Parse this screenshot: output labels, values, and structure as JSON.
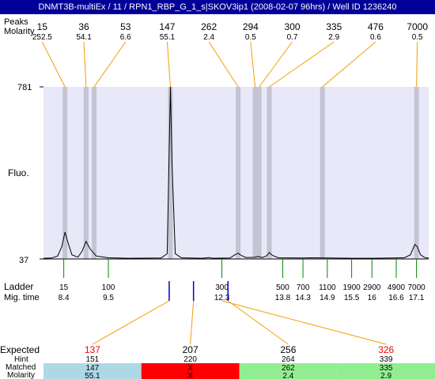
{
  "title": "DNMT3B-multiEx / 11 / RPN1_RBP_G_1_s|SKOV3ip1 (2008-02-07 96hrs) / Well ID 1236240",
  "top_labels": {
    "peaks": "Peaks",
    "molarity": "Molarity"
  },
  "left_labels": {
    "y_max": "781",
    "y_min": "37",
    "fluo": "Fluo.",
    "ladder": "Ladder",
    "mig_time": "Mig. time"
  },
  "colors": {
    "title_bg": "#000099",
    "plot_bg": "#e8e8f8",
    "band": "#c4c4d4",
    "trace": "#000000",
    "orange": "#f0a000",
    "ladder_tick": "#008800",
    "blue_tick": "#0000cc",
    "expected_red": "#ff0000",
    "row_blue": "#add8e6",
    "row_red": "#ff0000",
    "row_green": "#90ee90"
  },
  "chart_data": {
    "type": "line",
    "title": "",
    "xlabel": "",
    "ylabel": "Fluo.",
    "ylim": [
      37,
      781
    ],
    "mig_time_range": [
      7.9,
      17.4
    ],
    "trace": [
      [
        7.9,
        40
      ],
      [
        8.1,
        41
      ],
      [
        8.25,
        50
      ],
      [
        8.35,
        90
      ],
      [
        8.43,
        153
      ],
      [
        8.5,
        110
      ],
      [
        8.6,
        55
      ],
      [
        8.75,
        45
      ],
      [
        8.85,
        70
      ],
      [
        8.95,
        113
      ],
      [
        9.05,
        80
      ],
      [
        9.2,
        50
      ],
      [
        9.5,
        42
      ],
      [
        10.0,
        40
      ],
      [
        10.8,
        41
      ],
      [
        10.95,
        60
      ],
      [
        11.0,
        500
      ],
      [
        11.03,
        781
      ],
      [
        11.07,
        450
      ],
      [
        11.15,
        60
      ],
      [
        11.3,
        42
      ],
      [
        11.8,
        40
      ],
      [
        12.0,
        43
      ],
      [
        12.05,
        40
      ],
      [
        12.5,
        41
      ],
      [
        12.62,
        55
      ],
      [
        12.7,
        62
      ],
      [
        12.78,
        52
      ],
      [
        12.9,
        43
      ],
      [
        13.1,
        44
      ],
      [
        13.2,
        48
      ],
      [
        13.3,
        43
      ],
      [
        13.4,
        50
      ],
      [
        13.47,
        65
      ],
      [
        13.55,
        52
      ],
      [
        13.7,
        42
      ],
      [
        14.3,
        41
      ],
      [
        14.5,
        42
      ],
      [
        15.0,
        41
      ],
      [
        15.5,
        40
      ],
      [
        16.0,
        40
      ],
      [
        16.5,
        41
      ],
      [
        16.8,
        42
      ],
      [
        16.95,
        55
      ],
      [
        17.06,
        100
      ],
      [
        17.12,
        90
      ],
      [
        17.2,
        55
      ],
      [
        17.3,
        43
      ],
      [
        17.4,
        41
      ]
    ],
    "peaks": [
      {
        "size": "15",
        "molarity": "252.5",
        "band_x": 8.43
      },
      {
        "size": "36",
        "molarity": "54.1",
        "band_x": 8.95
      },
      {
        "size": "53",
        "molarity": "6.6",
        "band_x": 9.15
      },
      {
        "size": "147",
        "molarity": "55.1",
        "band_x": 11.03
      },
      {
        "size": "262",
        "molarity": "2.4",
        "band_x": 12.7
      },
      {
        "size": "294",
        "molarity": "0.5",
        "band_x": 13.12
      },
      {
        "size": "300",
        "molarity": "0.7",
        "band_x": 13.22
      },
      {
        "size": "335",
        "molarity": "2.9",
        "band_x": 13.47
      },
      {
        "size": "476",
        "molarity": "0.6",
        "band_x": 14.78
      },
      {
        "size": "7000",
        "molarity": "0.5",
        "band_x": 17.1
      }
    ],
    "ladder": [
      {
        "size": "15",
        "mig": "8.4"
      },
      {
        "size": "100",
        "mig": "9.5"
      },
      {
        "size": "300",
        "mig": "12.3"
      },
      {
        "size": "500",
        "mig": "13.8"
      },
      {
        "size": "700",
        "mig": "14.3"
      },
      {
        "size": "1100",
        "mig": "14.9"
      },
      {
        "size": "1900",
        "mig": "15.5"
      },
      {
        "size": "2900",
        "mig": "16"
      },
      {
        "size": "4900",
        "mig": "16.6"
      },
      {
        "size": "7000",
        "mig": "17.1"
      }
    ],
    "expected_ticks": [
      11.0,
      11.6,
      12.45
    ],
    "expected": {
      "labels": {
        "expected": "Expected",
        "hint": "Hint",
        "matched": "Matched",
        "molarity": "Molarity"
      },
      "columns": [
        {
          "expected": "137",
          "expected_red": true,
          "hint": "151",
          "matched": "147",
          "molarity": "55.1",
          "status": "match"
        },
        {
          "expected": "207",
          "expected_red": false,
          "hint": "220",
          "matched": "X",
          "molarity": "X",
          "status": "missing"
        },
        {
          "expected": "256",
          "expected_red": false,
          "hint": "264",
          "matched": "262",
          "molarity": "2.4",
          "status": "match"
        },
        {
          "expected": "326",
          "expected_red": true,
          "hint": "339",
          "matched": "335",
          "molarity": "2.9",
          "status": "match"
        }
      ]
    }
  }
}
